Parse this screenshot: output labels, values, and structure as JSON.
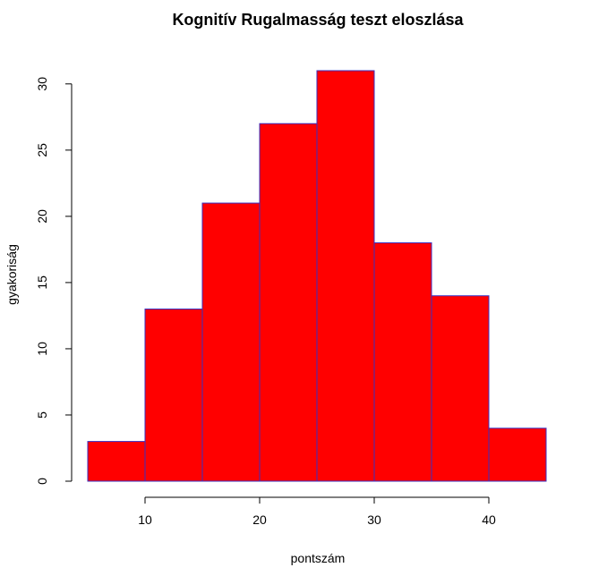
{
  "chart_data": {
    "type": "bar",
    "title": "Kognitív Rugalmasság teszt eloszlása",
    "xlabel": "pontszám",
    "ylabel": "gyakoriság",
    "bins": [
      {
        "from": 5,
        "to": 10,
        "count": 3
      },
      {
        "from": 10,
        "to": 15,
        "count": 13
      },
      {
        "from": 15,
        "to": 20,
        "count": 21
      },
      {
        "from": 20,
        "to": 25,
        "count": 27
      },
      {
        "from": 25,
        "to": 30,
        "count": 31
      },
      {
        "from": 30,
        "to": 35,
        "count": 18
      },
      {
        "from": 35,
        "to": 40,
        "count": 14
      },
      {
        "from": 40,
        "to": 45,
        "count": 4
      }
    ],
    "x_ticks": [
      10,
      20,
      30,
      40
    ],
    "y_ticks": [
      0,
      5,
      10,
      15,
      20,
      25,
      30
    ],
    "xlim": [
      5,
      45
    ],
    "ylim": [
      0,
      31
    ],
    "grid": false,
    "legend": "none",
    "colors": {
      "fill": "#ff0000",
      "border": "#3a2fbf"
    }
  }
}
